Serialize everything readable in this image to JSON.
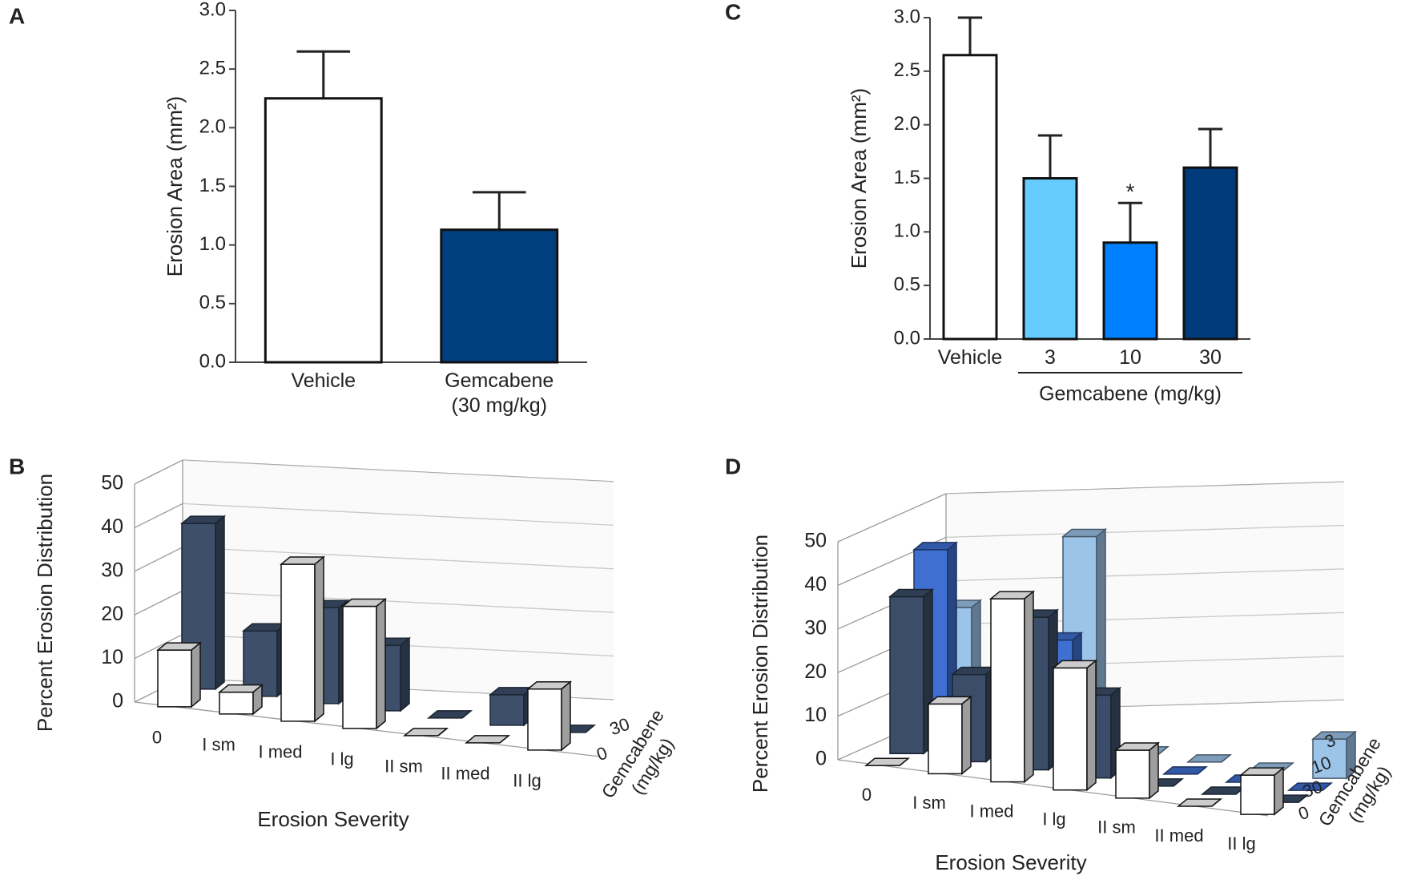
{
  "chart_data": [
    {
      "panel": "A",
      "type": "bar",
      "categories": [
        "Vehicle",
        "Gemcabene (30 mg/kg)"
      ],
      "values": [
        2.25,
        1.13
      ],
      "errors": [
        0.4,
        0.32
      ],
      "colors": [
        "#ffffff",
        "#003f7f"
      ],
      "y_label": "Erosion Area (mm²)",
      "ylim": [
        0,
        3
      ],
      "yticks": [
        {
          "value": 0,
          "label": "0.0"
        },
        0.5,
        {
          "value": 1,
          "label": "1.0"
        },
        1.5,
        {
          "value": 2,
          "label": "2.0"
        },
        2.5,
        {
          "value": 3,
          "label": "3.0"
        }
      ]
    },
    {
      "panel": "B",
      "type": "bar3d",
      "categories": [
        "0",
        "I sm",
        "I med",
        "I lg",
        "II sm",
        "II med",
        "II lg"
      ],
      "series": [
        {
          "name": "0",
          "color": "#ffffff",
          "values": [
            13,
            5,
            36,
            28,
            0,
            0,
            14
          ]
        },
        {
          "name": "30",
          "color": "#3d4f6b",
          "values": [
            38,
            15,
            22,
            15,
            0,
            7,
            0
          ]
        }
      ],
      "y_label": "Percent Erosion Distribution",
      "x_label": "Erosion Severity",
      "z_label": "Gemcabene (mg/kg)",
      "ylim": [
        0,
        50
      ],
      "yticks": [
        0,
        10,
        20,
        30,
        40,
        50
      ]
    },
    {
      "panel": "C",
      "type": "bar",
      "categories": [
        "Vehicle",
        "3",
        "10",
        "30"
      ],
      "values": [
        2.65,
        1.5,
        0.9,
        1.6
      ],
      "errors": [
        0.35,
        0.4,
        0.37,
        0.36
      ],
      "colors": [
        "#ffffff",
        "#66ccff",
        "#0080ff",
        "#003a7a"
      ],
      "y_label": "Erosion Area (mm²)",
      "x_group_label": "Gemcabene (mg/kg)",
      "annotations": [
        {
          "text": "*",
          "x": "10"
        }
      ],
      "ylim": [
        0,
        3
      ],
      "yticks": [
        {
          "value": 0,
          "label": "0.0"
        },
        0.5,
        {
          "value": 1,
          "label": "1.0"
        },
        1.5,
        {
          "value": 2,
          "label": "2.0"
        },
        2.5,
        {
          "value": 3,
          "label": "3.0"
        }
      ]
    },
    {
      "panel": "D",
      "type": "bar3d",
      "categories": [
        "0",
        "I sm",
        "I med",
        "I lg",
        "II sm",
        "II med",
        "II lg"
      ],
      "series": [
        {
          "name": "0",
          "color": "#ffffff",
          "values": [
            0,
            16,
            42,
            28,
            11,
            0,
            9
          ]
        },
        {
          "name": "30",
          "color": "#3c4d69",
          "values": [
            36,
            20,
            35,
            19,
            0,
            0,
            0
          ]
        },
        {
          "name": "10",
          "color": "#3f6fd1",
          "values": [
            44,
            0,
            27,
            0,
            0,
            0,
            0
          ]
        },
        {
          "name": "3",
          "color": "#9cc3e8",
          "values": [
            28,
            0,
            48,
            0,
            0,
            0,
            9
          ]
        }
      ],
      "y_label": "Percent Erosion Distribution",
      "x_label": "Erosion Severity",
      "z_label": "Gemcabene (mg/kg)",
      "ylim": [
        0,
        50
      ],
      "yticks": [
        0,
        10,
        20,
        30,
        40,
        50
      ]
    }
  ]
}
